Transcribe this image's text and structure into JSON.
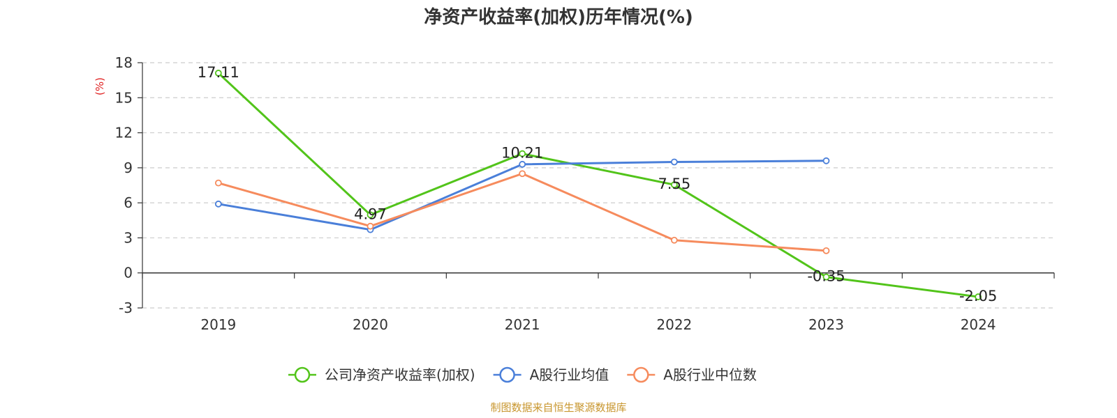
{
  "chart_data": {
    "type": "line",
    "title": "净资产收益率(加权)历年情况(%)",
    "ylabel": "(%)",
    "xlabel": "",
    "categories": [
      "2019",
      "2020",
      "2021",
      "2022",
      "2023",
      "2024"
    ],
    "ylim": [
      -3,
      18
    ],
    "yticks": [
      18,
      15,
      12,
      9,
      6,
      3,
      0,
      -3
    ],
    "grid": true,
    "legend_position": "bottom-center",
    "series": [
      {
        "name": "公司净资产收益率(加权)",
        "color": "#52c41a",
        "values": [
          17.11,
          4.97,
          10.21,
          7.55,
          -0.35,
          -2.05
        ],
        "labels": [
          "17.11",
          "4.97",
          "10.21",
          "7.55",
          "-0.35",
          "-2.05"
        ]
      },
      {
        "name": "A股行业均值",
        "color": "#4a7fd9",
        "values": [
          5.9,
          3.7,
          9.3,
          9.5,
          9.6,
          null
        ]
      },
      {
        "name": "A股行业中位数",
        "color": "#f68b5d",
        "values": [
          7.7,
          4.0,
          8.5,
          2.8,
          1.9,
          null
        ]
      }
    ]
  },
  "source_text": "制图数据来自恒生聚源数据库",
  "colors": {
    "axis": "#333333",
    "grid": "#cccccc",
    "ylabel": "#e02020",
    "source": "#c8962e"
  }
}
